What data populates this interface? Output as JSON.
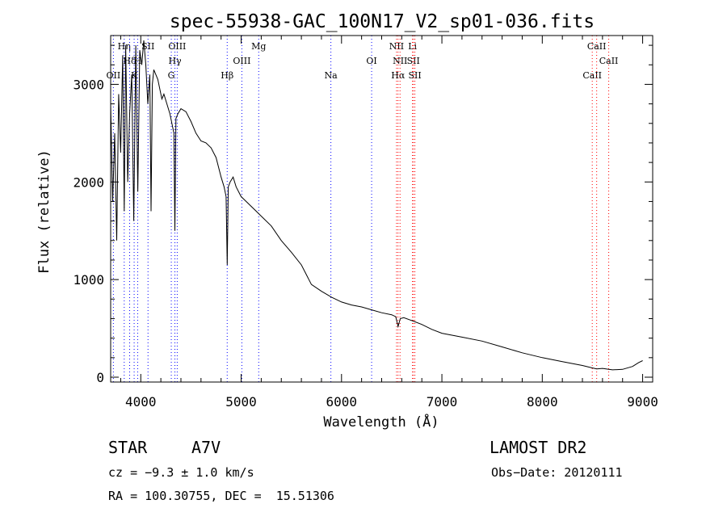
{
  "chart_data": {
    "type": "line",
    "title": "spec-55938-GAC_100N17_V2_sp01-036.fits",
    "xlabel": "Wavelength (Å)",
    "ylabel": "Flux (relative)",
    "xlim": [
      3700,
      9100
    ],
    "ylim": [
      0,
      3500
    ],
    "x_ticks": [
      4000,
      5000,
      6000,
      7000,
      8000,
      9000
    ],
    "y_ticks": [
      0,
      1000,
      2000,
      3000
    ],
    "grid": false,
    "series": [
      {
        "color": "#000000",
        "x": [
          3700,
          3720,
          3740,
          3760,
          3780,
          3800,
          3820,
          3835,
          3850,
          3870,
          3889,
          3910,
          3930,
          3950,
          3970,
          3990,
          4010,
          4030,
          4050,
          4070,
          4090,
          4102,
          4115,
          4130,
          4150,
          4170,
          4190,
          4210,
          4230,
          4260,
          4290,
          4310,
          4330,
          4340,
          4350,
          4370,
          4400,
          4450,
          4500,
          4550,
          4600,
          4650,
          4700,
          4750,
          4800,
          4830,
          4850,
          4861,
          4872,
          4890,
          4920,
          4950,
          5000,
          5050,
          5100,
          5150,
          5200,
          5300,
          5400,
          5500,
          5600,
          5700,
          5800,
          5900,
          6000,
          6100,
          6200,
          6300,
          6400,
          6500,
          6540,
          6563,
          6585,
          6620,
          6700,
          6800,
          6900,
          7000,
          7200,
          7400,
          7600,
          7800,
          8000,
          8200,
          8400,
          8498,
          8542,
          8600,
          8662,
          8700,
          8800,
          8900,
          8960,
          9000
        ],
        "values": [
          2800,
          1800,
          2500,
          1400,
          2900,
          2300,
          3300,
          1700,
          3400,
          2000,
          2700,
          3100,
          1600,
          3400,
          1900,
          3350,
          3200,
          3450,
          3200,
          2800,
          3100,
          1700,
          3000,
          3150,
          3100,
          3050,
          2950,
          2850,
          2900,
          2800,
          2700,
          2600,
          2500,
          1500,
          2650,
          2700,
          2750,
          2720,
          2620,
          2500,
          2420,
          2400,
          2350,
          2250,
          2050,
          1950,
          1850,
          1150,
          1950,
          2000,
          2050,
          1950,
          1850,
          1800,
          1750,
          1700,
          1650,
          1550,
          1400,
          1280,
          1150,
          950,
          880,
          820,
          770,
          740,
          720,
          690,
          660,
          640,
          620,
          520,
          600,
          610,
          580,
          540,
          490,
          450,
          410,
          370,
          310,
          250,
          200,
          160,
          120,
          95,
          85,
          90,
          80,
          75,
          80,
          110,
          150,
          170
        ]
      }
    ],
    "line_markers": [
      {
        "label": "OII",
        "x": 3727,
        "row": 2
      },
      {
        "label": "Hη",
        "x": 3835,
        "row": 0
      },
      {
        "label": "Hδ",
        "x": 3889,
        "row": 1
      },
      {
        "label": "K",
        "x": 3934,
        "row": 2
      },
      {
        "label": "H",
        "x": 3969,
        "row": 1
      },
      {
        "label": "SII",
        "x": 4072,
        "row": 0
      },
      {
        "label": "G",
        "x": 4304,
        "row": 2
      },
      {
        "label": "Hγ",
        "x": 4340,
        "row": 1
      },
      {
        "label": "OIII",
        "x": 4363,
        "row": 0
      },
      {
        "label": "Hβ",
        "x": 4861,
        "row": 2
      },
      {
        "label": "OIII",
        "x": 5007,
        "row": 1
      },
      {
        "label": "Mg",
        "x": 5175,
        "row": 0
      },
      {
        "label": "Na",
        "x": 5894,
        "row": 2
      },
      {
        "label": "OI",
        "x": 6300,
        "row": 1
      },
      {
        "label": "NII",
        "x": 6548,
        "row": 0
      },
      {
        "label": "Hα",
        "x": 6563,
        "row": 2
      },
      {
        "label": "NII",
        "x": 6583,
        "row": 1
      },
      {
        "label": "Li",
        "x": 6707,
        "row": 0
      },
      {
        "label": "SII",
        "x": 6716,
        "row": 1
      },
      {
        "label": "SII",
        "x": 6731,
        "row": 2
      },
      {
        "label": "CaII",
        "x": 8498,
        "row": 2
      },
      {
        "label": "CaII",
        "x": 8542,
        "row": 0
      },
      {
        "label": "CaII",
        "x": 8662,
        "row": 1
      }
    ],
    "marker_color_blue": "#0000ff",
    "marker_color_red": "#ff0000"
  },
  "info": {
    "object_class": "STAR",
    "subclass": "A7V",
    "survey": "LAMOST DR2",
    "cz": "cz = −9.3 ± 1.0 km/s",
    "obs_date": "Obs−Date: 20120111",
    "coords": "RA = 100.30755, DEC =  15.51306"
  }
}
